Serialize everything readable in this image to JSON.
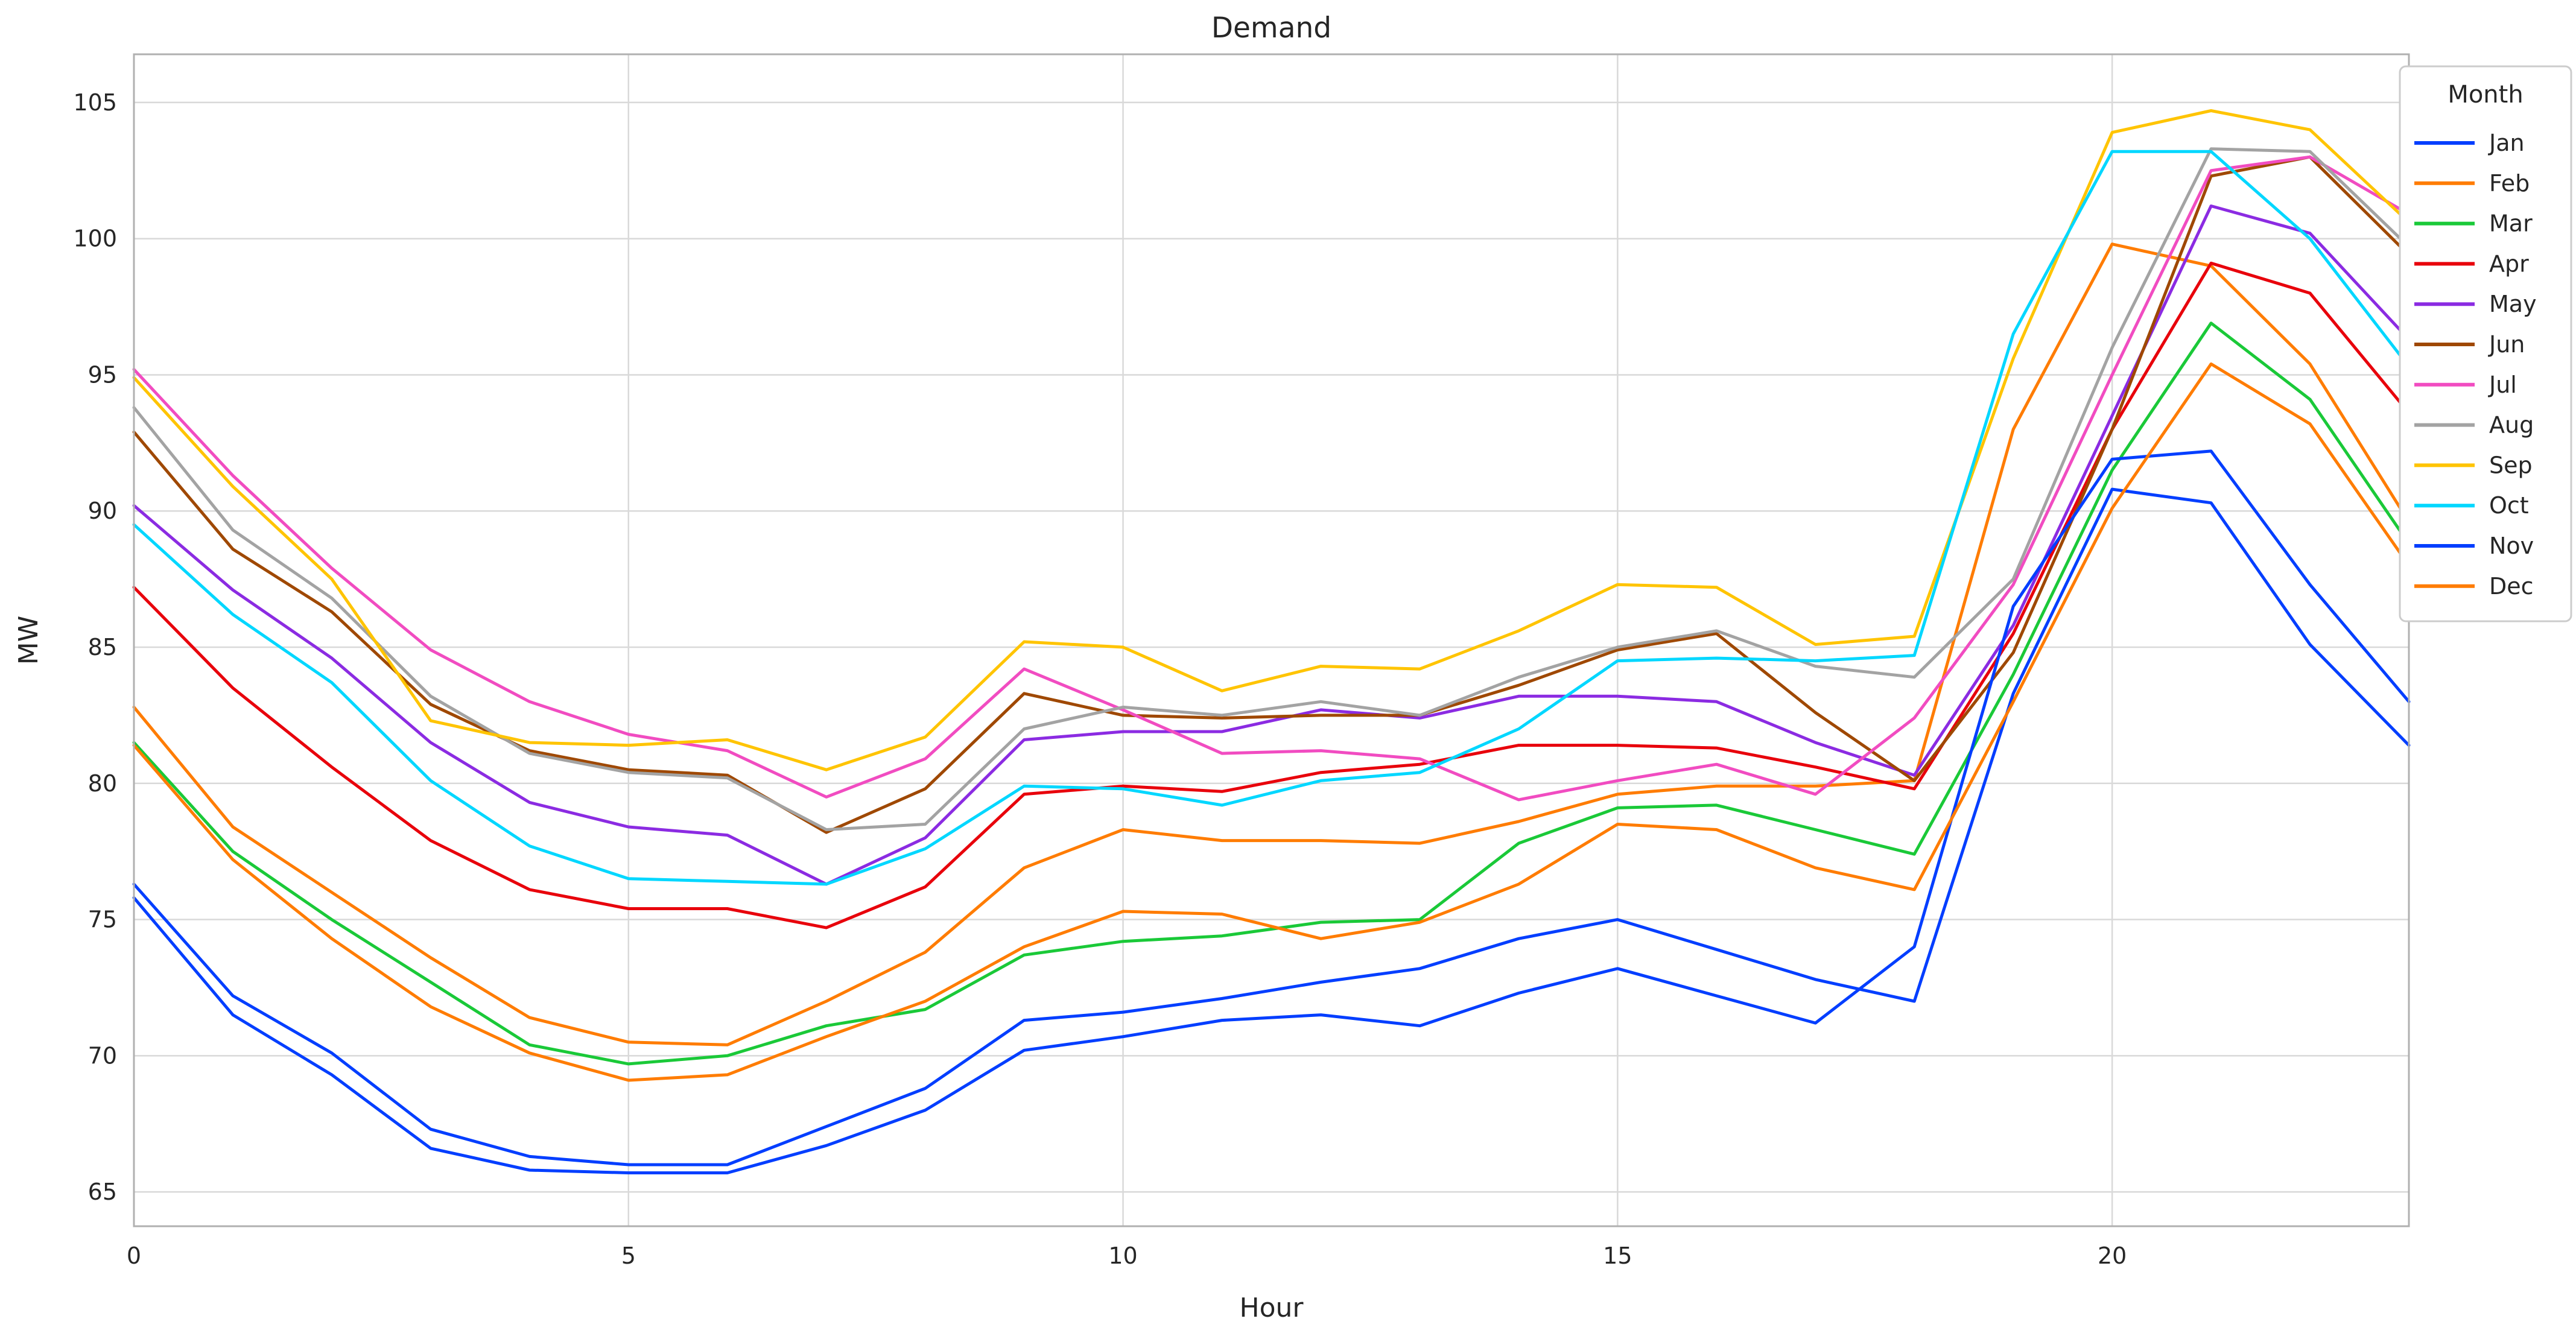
{
  "chart_data": {
    "type": "line",
    "title": "Demand",
    "xlabel": "Hour",
    "ylabel": "MW",
    "grid": true,
    "background": "#ffffff",
    "grid_color": "#d9d9d9",
    "spine_color": "#b0b0b0",
    "text_color": "#262626",
    "xlim": [
      0,
      23
    ],
    "ylim": [
      63.74,
      106.77
    ],
    "xticks": [
      0,
      5,
      10,
      15,
      20
    ],
    "yticks": [
      65,
      70,
      75,
      80,
      85,
      90,
      95,
      100,
      105
    ],
    "x": [
      0,
      1,
      2,
      3,
      4,
      5,
      6,
      7,
      8,
      9,
      10,
      11,
      12,
      13,
      14,
      15,
      16,
      17,
      18,
      19,
      20,
      21,
      22,
      23
    ],
    "legend": {
      "title": "Month",
      "position": "upper right outside"
    },
    "series": [
      {
        "name": "Jan",
        "color": "#023eff",
        "values": [
          76.3,
          72.2,
          70.1,
          67.3,
          66.3,
          66.0,
          66.0,
          67.4,
          68.8,
          71.3,
          71.6,
          72.1,
          72.7,
          73.2,
          74.3,
          75.0,
          73.9,
          72.8,
          72.0,
          83.3,
          90.8,
          90.3,
          85.1,
          81.4
        ]
      },
      {
        "name": "Feb",
        "color": "#ff7c00",
        "values": [
          82.8,
          78.4,
          76.0,
          73.6,
          71.4,
          70.5,
          70.4,
          72.0,
          73.8,
          76.9,
          78.3,
          77.9,
          77.9,
          77.8,
          78.6,
          79.6,
          79.9,
          79.9,
          80.1,
          93.0,
          99.8,
          99.0,
          95.4,
          89.6
        ]
      },
      {
        "name": "Mar",
        "color": "#1ac938",
        "values": [
          81.5,
          77.5,
          75.0,
          72.7,
          70.4,
          69.7,
          70.0,
          71.1,
          71.7,
          73.7,
          74.2,
          74.4,
          74.9,
          75.0,
          77.8,
          79.1,
          79.2,
          78.3,
          77.4,
          84.0,
          91.5,
          96.9,
          94.1,
          88.8
        ]
      },
      {
        "name": "Apr",
        "color": "#e8000b",
        "values": [
          87.2,
          83.5,
          80.6,
          77.9,
          76.1,
          75.4,
          75.4,
          74.7,
          76.2,
          79.6,
          79.9,
          79.7,
          80.4,
          80.7,
          81.4,
          81.4,
          81.3,
          80.6,
          79.8,
          85.5,
          93.0,
          99.1,
          98.0,
          93.6
        ]
      },
      {
        "name": "May",
        "color": "#8b2be2",
        "values": [
          90.2,
          87.1,
          84.6,
          81.5,
          79.3,
          78.4,
          78.1,
          76.3,
          78.0,
          81.6,
          81.9,
          81.9,
          82.7,
          82.4,
          83.2,
          83.2,
          83.0,
          81.5,
          80.3,
          85.8,
          93.5,
          101.2,
          100.2,
          96.3
        ]
      },
      {
        "name": "Jun",
        "color": "#9f4800",
        "values": [
          92.9,
          88.6,
          86.3,
          82.9,
          81.2,
          80.5,
          80.3,
          78.2,
          79.8,
          83.3,
          82.5,
          82.4,
          82.5,
          82.5,
          83.6,
          84.9,
          85.5,
          82.6,
          80.1,
          84.8,
          93.0,
          102.3,
          103.0,
          99.4
        ]
      },
      {
        "name": "Jul",
        "color": "#f14cc1",
        "values": [
          95.2,
          91.3,
          87.9,
          84.9,
          83.0,
          81.8,
          81.2,
          79.5,
          80.9,
          84.2,
          82.7,
          81.1,
          81.2,
          80.9,
          79.4,
          80.1,
          80.7,
          79.6,
          82.4,
          87.3,
          95.0,
          102.5,
          103.0,
          100.9
        ]
      },
      {
        "name": "Aug",
        "color": "#a3a3a3",
        "values": [
          93.8,
          89.3,
          86.8,
          83.2,
          81.1,
          80.4,
          80.2,
          78.3,
          78.5,
          82.0,
          82.8,
          82.5,
          83.0,
          82.5,
          83.9,
          85.0,
          85.6,
          84.3,
          83.9,
          87.5,
          96.0,
          103.3,
          103.2,
          99.7
        ]
      },
      {
        "name": "Sep",
        "color": "#ffc400",
        "values": [
          94.9,
          90.9,
          87.5,
          82.3,
          81.5,
          81.4,
          81.6,
          80.5,
          81.7,
          85.2,
          85.0,
          83.4,
          84.3,
          84.2,
          85.6,
          87.3,
          87.2,
          85.1,
          85.4,
          95.6,
          103.9,
          104.7,
          104.0,
          100.6
        ]
      },
      {
        "name": "Oct",
        "color": "#00d7ff",
        "values": [
          89.5,
          86.2,
          83.7,
          80.1,
          77.7,
          76.5,
          76.4,
          76.3,
          77.6,
          79.9,
          79.8,
          79.2,
          80.1,
          80.4,
          82.0,
          84.5,
          84.6,
          84.5,
          84.7,
          96.5,
          103.2,
          103.2,
          100.0,
          95.3
        ]
      },
      {
        "name": "Nov",
        "color": "#023eff",
        "values": [
          75.8,
          71.5,
          69.3,
          66.6,
          65.8,
          65.7,
          65.7,
          66.7,
          68.0,
          70.2,
          70.7,
          71.3,
          71.5,
          71.1,
          72.3,
          73.2,
          72.2,
          71.2,
          74.0,
          86.5,
          91.9,
          92.2,
          87.3,
          83.0
        ]
      },
      {
        "name": "Dec",
        "color": "#ff7c00",
        "values": [
          81.4,
          77.2,
          74.3,
          71.8,
          70.1,
          69.1,
          69.3,
          70.7,
          72.0,
          74.0,
          75.3,
          75.2,
          74.3,
          74.9,
          76.3,
          78.5,
          78.3,
          76.9,
          76.1,
          83.0,
          90.1,
          95.4,
          93.2,
          88.0
        ]
      }
    ]
  }
}
